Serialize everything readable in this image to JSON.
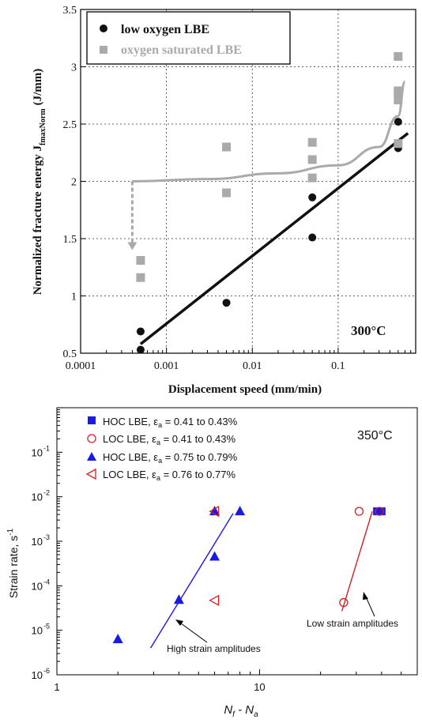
{
  "chart_data": [
    {
      "type": "scatter",
      "xlabel": "Displacement speed (mm/min)",
      "ylabel_main": "Normalized fracture energy J",
      "ylabel_sub": "fmaxNorm",
      "ylabel_unit": "(J/mm)",
      "annotation": "300°C",
      "x_scale": "log",
      "xlim": [
        0.0001,
        0.8
      ],
      "ylim": [
        0.5,
        3.5
      ],
      "x_ticks": [
        {
          "v": 0.0001,
          "label": "0.0001"
        },
        {
          "v": 0.001,
          "label": "0.001"
        },
        {
          "v": 0.01,
          "label": "0.01"
        },
        {
          "v": 0.1,
          "label": "0.1"
        }
      ],
      "y_ticks": [
        {
          "v": 0.5,
          "label": "0.5"
        },
        {
          "v": 1,
          "label": "1"
        },
        {
          "v": 1.5,
          "label": "1.5"
        },
        {
          "v": 2,
          "label": "2"
        },
        {
          "v": 2.5,
          "label": "2.5"
        },
        {
          "v": 3,
          "label": "3"
        },
        {
          "v": 3.5,
          "label": "3.5"
        }
      ],
      "grid": true,
      "legend_position": "top-left",
      "series": [
        {
          "name": "low oxygen LBE",
          "marker": "circle",
          "color": "#111111",
          "points": [
            [
              0.0005,
              0.69
            ],
            [
              0.0005,
              0.53
            ],
            [
              0.005,
              0.94
            ],
            [
              0.05,
              1.86
            ],
            [
              0.05,
              1.51
            ],
            [
              0.5,
              2.52
            ],
            [
              0.5,
              2.29
            ]
          ]
        },
        {
          "name": "oxygen saturated LBE",
          "marker": "square",
          "color": "#aaaaaa",
          "points": [
            [
              0.0005,
              1.31
            ],
            [
              0.0005,
              1.16
            ],
            [
              0.005,
              2.3
            ],
            [
              0.005,
              1.9
            ],
            [
              0.05,
              2.34
            ],
            [
              0.05,
              2.19
            ],
            [
              0.05,
              2.03
            ],
            [
              0.5,
              3.09
            ],
            [
              0.5,
              2.79
            ],
            [
              0.5,
              2.76
            ],
            [
              0.5,
              2.71
            ],
            [
              0.5,
              2.33
            ]
          ]
        }
      ],
      "fit_lines": [
        {
          "series": "low oxygen LBE",
          "color": "#111111",
          "points": [
            [
              0.0005,
              0.58
            ],
            [
              0.65,
              2.42
            ]
          ]
        },
        {
          "series": "oxygen saturated LBE",
          "color": "#aaaaaa",
          "points": [
            [
              0.0004,
              2.0
            ],
            [
              0.003,
              2.02
            ],
            [
              0.02,
              2.07
            ],
            [
              0.1,
              2.14
            ],
            [
              0.3,
              2.3
            ],
            [
              0.5,
              2.57
            ],
            [
              0.6,
              2.87
            ]
          ]
        }
      ],
      "arrow": {
        "color": "#aaaaaa",
        "from": [
          0.0004,
          2.0
        ],
        "to": [
          0.0004,
          1.4
        ]
      }
    },
    {
      "type": "scatter",
      "xlabel_main": "N",
      "xlabel_sub1": "f",
      "xlabel_mid": " - N",
      "xlabel_sub2": "a",
      "ylabel": "Strain rate, s",
      "ylabel_sup": "-1",
      "annotation": "350°C",
      "x_scale": "log",
      "y_scale": "log",
      "xlim": [
        1,
        60
      ],
      "ylim": [
        1e-06,
        1
      ],
      "x_ticks": [
        {
          "v": 1,
          "label": "1"
        },
        {
          "v": 10,
          "label": "10"
        }
      ],
      "y_ticks": [
        {
          "v": 1e-06,
          "base": "10",
          "exp": "-6"
        },
        {
          "v": 1e-05,
          "base": "10",
          "exp": "-5"
        },
        {
          "v": 0.0001,
          "base": "10",
          "exp": "-4"
        },
        {
          "v": 0.001,
          "base": "10",
          "exp": "-3"
        },
        {
          "v": 0.01,
          "base": "10",
          "exp": "-2"
        },
        {
          "v": 0.1,
          "base": "10",
          "exp": "-1"
        }
      ],
      "grid": false,
      "legend_position": "top-left",
      "series": [
        {
          "name_pre": "HOC LBE, ε",
          "name_sub": "a",
          "name_post": " = 0.41 to 0.43%",
          "marker": "filled-square",
          "color": "#1a1ae6",
          "points": [
            [
              38,
              0.0047
            ],
            [
              40,
              0.0047
            ]
          ]
        },
        {
          "name_pre": "LOC LBE, ε",
          "name_sub": "a",
          "name_post": " = 0.41 to 0.43%",
          "marker": "open-circle",
          "color": "#d42020",
          "points": [
            [
              31,
              0.0047
            ],
            [
              39,
              0.0047
            ],
            [
              26,
              4.2e-05
            ]
          ]
        },
        {
          "name_pre": "HOC LBE, ε",
          "name_sub": "a",
          "name_post": " = 0.75 to 0.79%",
          "marker": "filled-triangle-up",
          "color": "#1a1ae6",
          "points": [
            [
              2,
              6.3e-06
            ],
            [
              4,
              4.8e-05
            ],
            [
              6,
              0.00045
            ],
            [
              6,
              0.0047
            ],
            [
              8,
              0.0047
            ]
          ]
        },
        {
          "name_pre": "LOC LBE, ε",
          "name_sub": "a",
          "name_post": " = 0.76 to 0.77%",
          "marker": "open-triangle-left",
          "color": "#d42020",
          "points": [
            [
              6,
              0.0047
            ],
            [
              6,
              4.7e-05
            ]
          ]
        }
      ],
      "fit_lines": [
        {
          "color": "#1a1ae6",
          "points": [
            [
              2.9,
              4e-06
            ],
            [
              7.4,
              0.0042
            ]
          ]
        },
        {
          "color": "#d42020",
          "points": [
            [
              25.5,
              2.7e-05
            ],
            [
              36,
              0.0047
            ]
          ]
        }
      ],
      "annotations": [
        {
          "text": "High strain amplitudes",
          "arrow_to": [
            4.8,
            2e-05
          ]
        },
        {
          "text": "Low strain amplitudes",
          "arrow_to": [
            28,
            7.5e-05
          ]
        }
      ]
    }
  ]
}
